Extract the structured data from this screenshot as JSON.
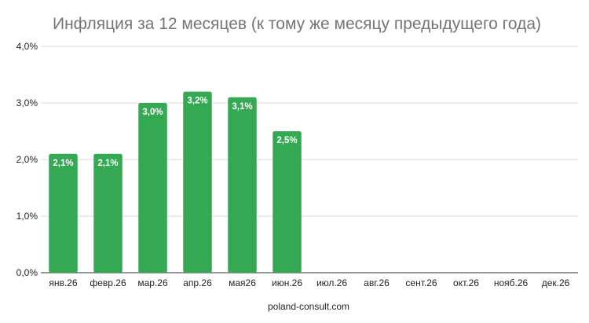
{
  "chart_data": {
    "type": "bar",
    "title": "Инфляция за 12 месяцев (к тому же месяцу предыдущего года)",
    "xlabel": "poland-consult.com",
    "ylabel": "",
    "ylim": [
      0,
      4
    ],
    "yticks": [
      "0,0%",
      "1,0%",
      "2,0%",
      "3,0%",
      "4,0%"
    ],
    "grid": true,
    "bar_color": "#34a853",
    "categories": [
      "янв.26",
      "февр.26",
      "мар.26",
      "апр.26",
      "мая26",
      "июн.26",
      "июл.26",
      "авг.26",
      "сент.26",
      "окт.26",
      "нояб.26",
      "дек.26"
    ],
    "values": [
      2.1,
      2.1,
      3.0,
      3.2,
      3.1,
      2.5,
      null,
      null,
      null,
      null,
      null,
      null
    ],
    "data_labels": [
      "2,1%",
      "2,1%",
      "3,0%",
      "3,2%",
      "3,1%",
      "2,5%",
      "",
      "",
      "",
      "",
      "",
      ""
    ]
  }
}
